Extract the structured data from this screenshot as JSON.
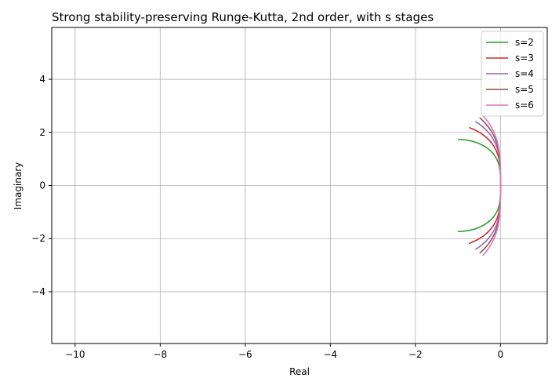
{
  "chart_data": {
    "type": "line",
    "title": "Strong stability-preserving Runge-Kutta, 2nd order, with s stages",
    "xlabel": "Real",
    "ylabel": "Imaginary",
    "xlim": [
      -10.55,
      1.1
    ],
    "ylim": [
      -5.95,
      5.95
    ],
    "grid": true,
    "legend_position": "top-right",
    "x_ticks": [
      {
        "value": -10,
        "label": "−10"
      },
      {
        "value": -8,
        "label": "−8"
      },
      {
        "value": -6,
        "label": "−6"
      },
      {
        "value": -4,
        "label": "−4"
      },
      {
        "value": -2,
        "label": "−2"
      },
      {
        "value": 0,
        "label": "0"
      }
    ],
    "y_ticks": [
      {
        "value": -4,
        "label": "−4"
      },
      {
        "value": -2,
        "label": "−2"
      },
      {
        "value": 0,
        "label": "0"
      },
      {
        "value": 2,
        "label": "2"
      },
      {
        "value": 4,
        "label": "4"
      }
    ],
    "series": [
      {
        "name": "s=2",
        "stages": 2,
        "color": "#2ca02c"
      },
      {
        "name": "s=3",
        "stages": 3,
        "color": "#d62728"
      },
      {
        "name": "s=4",
        "stages": 4,
        "color": "#9467bd"
      },
      {
        "name": "s=5",
        "stages": 5,
        "color": "#8c564b"
      },
      {
        "name": "s=6",
        "stages": 6,
        "color": "#e377c2"
      }
    ]
  }
}
